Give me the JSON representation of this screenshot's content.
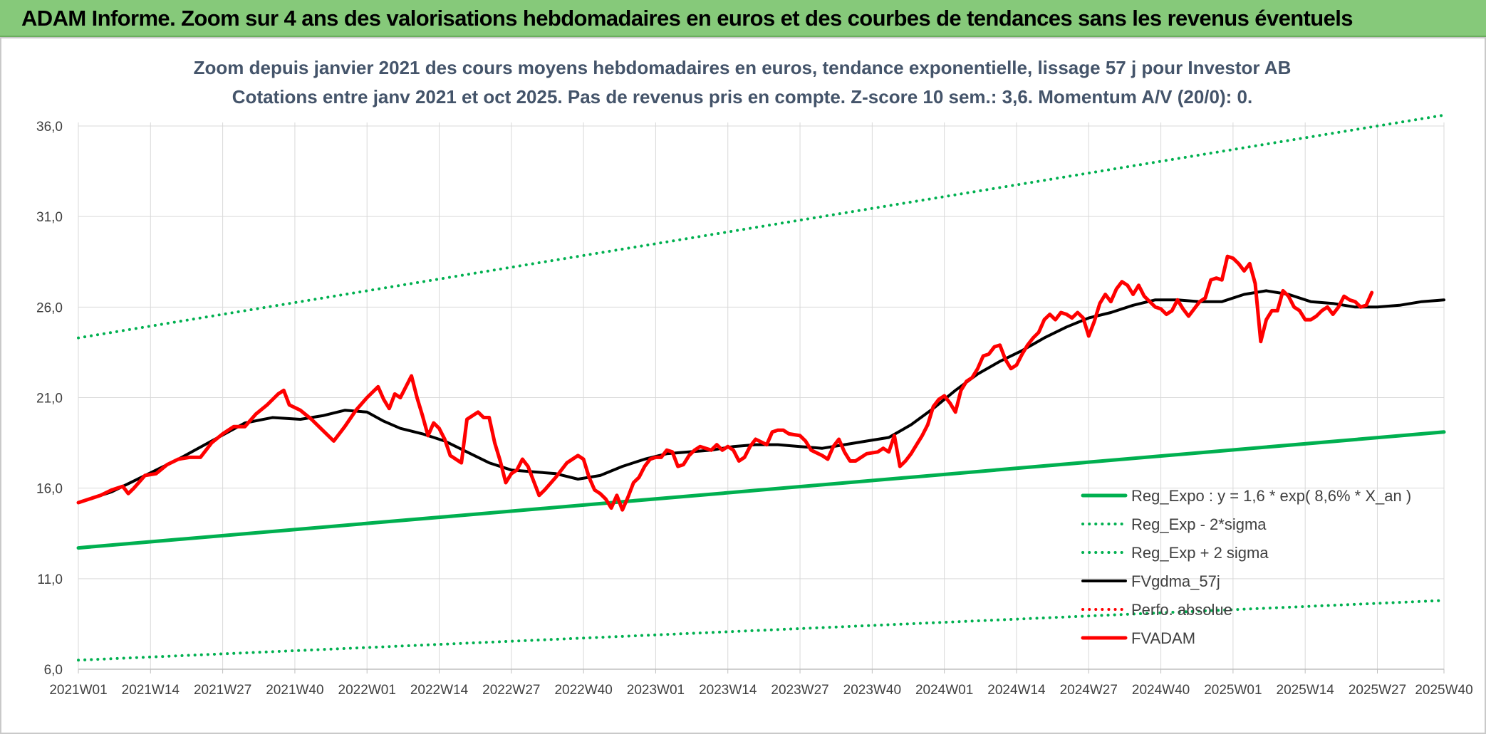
{
  "page": {
    "banner_title": "ADAM Informe. Zoom sur 4 ans des valorisations hebdomadaires en euros et des courbes de tendances sans les revenus éventuels"
  },
  "chart_data": {
    "type": "line",
    "title": "Zoom depuis janvier 2021 des cours moyens hebdomadaires en euros, tendance exponentielle, lissage 57 j pour Investor AB",
    "subtitle": "Cotations entre janv 2021 et oct 2025. Pas de revenus pris en compte. Z-score 10 sem.: 3,6. Momentum A/V (20/0): 0.",
    "xlabel": "",
    "ylabel": "",
    "ylim": [
      6.0,
      36.0
    ],
    "yticks": [
      "6,0",
      "11,0",
      "16,0",
      "21,0",
      "26,0",
      "31,0",
      "36,0"
    ],
    "ytick_values": [
      6,
      11,
      16,
      21,
      26,
      31,
      36
    ],
    "x_range": [
      0,
      246
    ],
    "xticks": [
      "2021W01",
      "2021W14",
      "2021W27",
      "2021W40",
      "2022W01",
      "2022W14",
      "2022W27",
      "2022W40",
      "2023W01",
      "2023W14",
      "2023W27",
      "2023W40",
      "2024W01",
      "2024W14",
      "2024W27",
      "2024W40",
      "2025W01",
      "2025W14",
      "2025W27",
      "2025W40"
    ],
    "xtick_index": [
      0,
      13,
      26,
      39,
      52,
      65,
      78,
      91,
      104,
      117,
      130,
      143,
      156,
      169,
      182,
      195,
      208,
      221,
      234,
      246
    ],
    "grid": true,
    "legend_position": "bottom-right",
    "series": [
      {
        "name": "Reg_Expo : y = 1,6 * exp( 8,6% *  X_an )",
        "color": "#00b050",
        "style": "solid-thick",
        "points": [
          [
            0,
            12.7
          ],
          [
            246,
            19.1
          ]
        ]
      },
      {
        "name": "Reg_Exp - 2*sigma",
        "color": "#00b050",
        "style": "dotted",
        "points": [
          [
            0,
            6.5
          ],
          [
            246,
            9.8
          ]
        ]
      },
      {
        "name": "Reg_Exp + 2 sigma",
        "color": "#00b050",
        "style": "dotted",
        "points": [
          [
            0,
            24.3
          ],
          [
            246,
            36.6
          ]
        ]
      },
      {
        "name": "FVgdma_57j",
        "color": "#000000",
        "style": "solid",
        "points": [
          [
            0,
            15.2
          ],
          [
            6,
            15.8
          ],
          [
            12,
            16.7
          ],
          [
            18,
            17.6
          ],
          [
            24,
            18.6
          ],
          [
            30,
            19.6
          ],
          [
            35,
            19.9
          ],
          [
            40,
            19.8
          ],
          [
            44,
            20.0
          ],
          [
            48,
            20.3
          ],
          [
            52,
            20.2
          ],
          [
            55,
            19.7
          ],
          [
            58,
            19.3
          ],
          [
            62,
            19.0
          ],
          [
            66,
            18.6
          ],
          [
            70,
            18.0
          ],
          [
            74,
            17.4
          ],
          [
            78,
            17.0
          ],
          [
            82,
            16.9
          ],
          [
            86,
            16.8
          ],
          [
            90,
            16.5
          ],
          [
            94,
            16.7
          ],
          [
            98,
            17.2
          ],
          [
            102,
            17.6
          ],
          [
            106,
            17.9
          ],
          [
            110,
            18.0
          ],
          [
            114,
            18.1
          ],
          [
            118,
            18.3
          ],
          [
            122,
            18.4
          ],
          [
            126,
            18.4
          ],
          [
            130,
            18.3
          ],
          [
            134,
            18.2
          ],
          [
            138,
            18.4
          ],
          [
            142,
            18.6
          ],
          [
            146,
            18.8
          ],
          [
            150,
            19.5
          ],
          [
            154,
            20.4
          ],
          [
            158,
            21.4
          ],
          [
            162,
            22.3
          ],
          [
            166,
            23.0
          ],
          [
            170,
            23.6
          ],
          [
            174,
            24.3
          ],
          [
            178,
            24.9
          ],
          [
            182,
            25.4
          ],
          [
            186,
            25.7
          ],
          [
            190,
            26.1
          ],
          [
            194,
            26.4
          ],
          [
            198,
            26.4
          ],
          [
            202,
            26.3
          ],
          [
            206,
            26.3
          ],
          [
            210,
            26.7
          ],
          [
            214,
            26.9
          ],
          [
            218,
            26.7
          ],
          [
            222,
            26.3
          ],
          [
            226,
            26.2
          ],
          [
            230,
            26.0
          ],
          [
            234,
            26.0
          ],
          [
            238,
            26.1
          ],
          [
            242,
            26.3
          ],
          [
            246,
            26.4
          ]
        ]
      },
      {
        "name": "Perfo. absolue",
        "color": "#ff0000",
        "style": "dotted",
        "points": []
      },
      {
        "name": "FVADAM",
        "color": "#ff0000",
        "style": "solid-thick",
        "points": [
          [
            0,
            15.2
          ],
          [
            2,
            15.4
          ],
          [
            4,
            15.6
          ],
          [
            6,
            15.9
          ],
          [
            8,
            16.1
          ],
          [
            9,
            15.7
          ],
          [
            10,
            16.0
          ],
          [
            12,
            16.7
          ],
          [
            14,
            16.8
          ],
          [
            16,
            17.3
          ],
          [
            18,
            17.6
          ],
          [
            20,
            17.7
          ],
          [
            22,
            17.7
          ],
          [
            24,
            18.5
          ],
          [
            26,
            19.0
          ],
          [
            28,
            19.4
          ],
          [
            30,
            19.4
          ],
          [
            32,
            20.1
          ],
          [
            34,
            20.6
          ],
          [
            36,
            21.2
          ],
          [
            37,
            21.4
          ],
          [
            38,
            20.6
          ],
          [
            40,
            20.3
          ],
          [
            42,
            19.8
          ],
          [
            44,
            19.2
          ],
          [
            46,
            18.6
          ],
          [
            48,
            19.4
          ],
          [
            50,
            20.3
          ],
          [
            52,
            21.0
          ],
          [
            54,
            21.6
          ],
          [
            55,
            20.9
          ],
          [
            56,
            20.4
          ],
          [
            57,
            21.2
          ],
          [
            58,
            21.0
          ],
          [
            60,
            22.2
          ],
          [
            61,
            21.0
          ],
          [
            62,
            20.0
          ],
          [
            63,
            18.9
          ],
          [
            64,
            19.6
          ],
          [
            65,
            19.3
          ],
          [
            66,
            18.7
          ],
          [
            67,
            17.8
          ],
          [
            68,
            17.6
          ],
          [
            69,
            17.4
          ],
          [
            70,
            19.8
          ],
          [
            72,
            20.2
          ],
          [
            73,
            19.9
          ],
          [
            74,
            19.9
          ],
          [
            75,
            18.5
          ],
          [
            76,
            17.5
          ],
          [
            77,
            16.3
          ],
          [
            78,
            16.8
          ],
          [
            79,
            17.0
          ],
          [
            80,
            17.6
          ],
          [
            81,
            17.2
          ],
          [
            82,
            16.4
          ],
          [
            83,
            15.6
          ],
          [
            84,
            15.9
          ],
          [
            86,
            16.6
          ],
          [
            88,
            17.4
          ],
          [
            90,
            17.8
          ],
          [
            91,
            17.6
          ],
          [
            92,
            16.6
          ],
          [
            93,
            15.9
          ],
          [
            94,
            15.7
          ],
          [
            95,
            15.4
          ],
          [
            96,
            14.9
          ],
          [
            97,
            15.6
          ],
          [
            98,
            14.8
          ],
          [
            99,
            15.5
          ],
          [
            100,
            16.3
          ],
          [
            101,
            16.6
          ],
          [
            102,
            17.2
          ],
          [
            103,
            17.6
          ],
          [
            104,
            17.7
          ],
          [
            105,
            17.7
          ],
          [
            106,
            18.1
          ],
          [
            107,
            18.0
          ],
          [
            108,
            17.2
          ],
          [
            109,
            17.3
          ],
          [
            110,
            17.8
          ],
          [
            111,
            18.1
          ],
          [
            112,
            18.3
          ],
          [
            114,
            18.1
          ],
          [
            115,
            18.4
          ],
          [
            116,
            18.1
          ],
          [
            117,
            18.3
          ],
          [
            118,
            18.1
          ],
          [
            119,
            17.5
          ],
          [
            120,
            17.7
          ],
          [
            121,
            18.3
          ],
          [
            122,
            18.7
          ],
          [
            124,
            18.4
          ],
          [
            125,
            19.1
          ],
          [
            126,
            19.2
          ],
          [
            127,
            19.2
          ],
          [
            128,
            19.0
          ],
          [
            130,
            18.9
          ],
          [
            131,
            18.6
          ],
          [
            132,
            18.1
          ],
          [
            134,
            17.8
          ],
          [
            135,
            17.6
          ],
          [
            136,
            18.3
          ],
          [
            137,
            18.7
          ],
          [
            138,
            18.0
          ],
          [
            139,
            17.5
          ],
          [
            140,
            17.5
          ],
          [
            142,
            17.9
          ],
          [
            144,
            18.0
          ],
          [
            145,
            18.2
          ],
          [
            146,
            18.0
          ],
          [
            147,
            18.9
          ],
          [
            148,
            17.2
          ],
          [
            149,
            17.5
          ],
          [
            150,
            17.9
          ],
          [
            151,
            18.4
          ],
          [
            152,
            18.9
          ],
          [
            153,
            19.5
          ],
          [
            154,
            20.5
          ],
          [
            155,
            20.9
          ],
          [
            156,
            21.1
          ],
          [
            157,
            20.7
          ],
          [
            158,
            20.2
          ],
          [
            159,
            21.4
          ],
          [
            160,
            21.9
          ],
          [
            161,
            22.1
          ],
          [
            162,
            22.6
          ],
          [
            163,
            23.3
          ],
          [
            164,
            23.4
          ],
          [
            165,
            23.8
          ],
          [
            166,
            23.9
          ],
          [
            167,
            23.1
          ],
          [
            168,
            22.6
          ],
          [
            169,
            22.8
          ],
          [
            170,
            23.4
          ],
          [
            171,
            23.9
          ],
          [
            172,
            24.3
          ],
          [
            173,
            24.6
          ],
          [
            174,
            25.3
          ],
          [
            175,
            25.6
          ],
          [
            176,
            25.3
          ],
          [
            177,
            25.7
          ],
          [
            178,
            25.6
          ],
          [
            179,
            25.4
          ],
          [
            180,
            25.7
          ],
          [
            181,
            25.4
          ],
          [
            182,
            24.4
          ],
          [
            183,
            25.2
          ],
          [
            184,
            26.2
          ],
          [
            185,
            26.7
          ],
          [
            186,
            26.3
          ],
          [
            187,
            27.0
          ],
          [
            188,
            27.4
          ],
          [
            189,
            27.2
          ],
          [
            190,
            26.7
          ],
          [
            191,
            27.2
          ],
          [
            192,
            26.6
          ],
          [
            193,
            26.3
          ],
          [
            194,
            26.0
          ],
          [
            195,
            25.9
          ],
          [
            196,
            25.6
          ],
          [
            197,
            25.8
          ],
          [
            198,
            26.4
          ],
          [
            199,
            25.9
          ],
          [
            200,
            25.5
          ],
          [
            201,
            25.9
          ],
          [
            202,
            26.3
          ],
          [
            203,
            26.5
          ],
          [
            204,
            27.5
          ],
          [
            205,
            27.6
          ],
          [
            206,
            27.5
          ],
          [
            207,
            28.8
          ],
          [
            208,
            28.7
          ],
          [
            209,
            28.4
          ],
          [
            210,
            28.0
          ],
          [
            211,
            28.4
          ],
          [
            212,
            27.3
          ],
          [
            213,
            24.1
          ],
          [
            214,
            25.3
          ],
          [
            215,
            25.8
          ],
          [
            216,
            25.8
          ],
          [
            217,
            26.9
          ],
          [
            218,
            26.6
          ],
          [
            219,
            26.0
          ],
          [
            220,
            25.8
          ],
          [
            221,
            25.3
          ],
          [
            222,
            25.3
          ],
          [
            223,
            25.5
          ],
          [
            224,
            25.8
          ],
          [
            225,
            26.0
          ],
          [
            226,
            25.6
          ],
          [
            227,
            26.0
          ],
          [
            228,
            26.6
          ],
          [
            229,
            26.4
          ],
          [
            230,
            26.3
          ],
          [
            231,
            26.0
          ],
          [
            232,
            26.1
          ],
          [
            233,
            26.8
          ]
        ]
      }
    ]
  }
}
